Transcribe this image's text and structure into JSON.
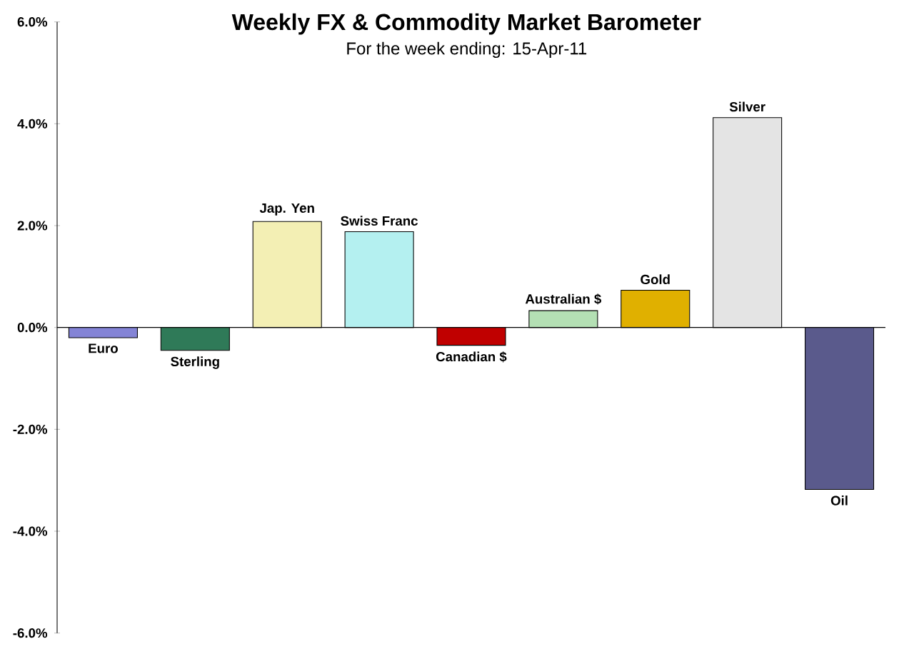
{
  "chart_data": {
    "type": "bar",
    "title": "Weekly FX & Commodity  Market Barometer",
    "subtitle": "For the week ending:  15-Apr-11",
    "categories": [
      "Euro",
      "Sterling",
      "Jap. Yen",
      "Swiss Franc",
      "Canadian $",
      "Australian $",
      "Gold",
      "Silver",
      "Oil"
    ],
    "values": [
      -0.2,
      -0.45,
      2.08,
      1.88,
      -0.35,
      0.33,
      0.73,
      4.12,
      -3.18
    ],
    "colors": [
      "#8484d6",
      "#2f7a58",
      "#f3efb4",
      "#b4f0f0",
      "#c00000",
      "#b4e0b4",
      "#e0b000",
      "#e4e4e4",
      "#5a5a8c"
    ],
    "ylim": [
      -6,
      6
    ],
    "yticks": [
      {
        "value": -6,
        "label": "-6.0%"
      },
      {
        "value": -4,
        "label": "-4.0%"
      },
      {
        "value": -2,
        "label": "-2.0%"
      },
      {
        "value": 0,
        "label": "0.0%"
      },
      {
        "value": 2,
        "label": "2.0%"
      },
      {
        "value": 4,
        "label": "4.0%"
      },
      {
        "value": 6,
        "label": "6.0%"
      }
    ]
  }
}
